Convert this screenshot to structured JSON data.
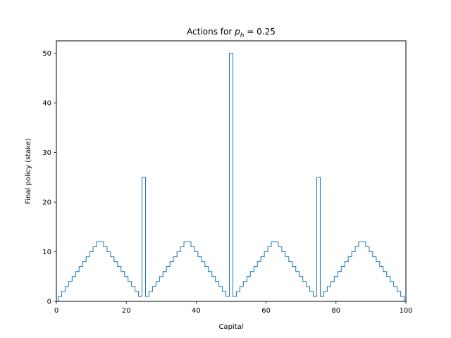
{
  "chart_data": {
    "type": "line",
    "drawstyle": "steps",
    "title_prefix": "Actions for ",
    "title_symbol": "p",
    "title_subscript": "h",
    "title_value": " =  0.25",
    "xlabel": "Capital",
    "ylabel": "Final policy (stake)",
    "xlim": [
      0,
      100
    ],
    "ylim": [
      0,
      52.5
    ],
    "xticks": [
      0,
      20,
      40,
      60,
      80,
      100
    ],
    "yticks": [
      0,
      10,
      20,
      30,
      40,
      50
    ],
    "grid": false,
    "color": "#1f77b4",
    "series": [
      {
        "x": [
          0,
          1,
          2,
          3,
          4,
          5,
          6,
          7,
          8,
          9,
          10,
          11,
          12,
          13,
          14,
          15,
          16,
          17,
          18,
          19,
          20,
          21,
          22,
          23,
          24,
          25,
          26,
          27,
          28,
          29,
          30,
          31,
          32,
          33,
          34,
          35,
          36,
          37,
          38,
          39,
          40,
          41,
          42,
          43,
          44,
          45,
          46,
          47,
          48,
          49,
          50,
          51,
          52,
          53,
          54,
          55,
          56,
          57,
          58,
          59,
          60,
          61,
          62,
          63,
          64,
          65,
          66,
          67,
          68,
          69,
          70,
          71,
          72,
          73,
          74,
          75,
          76,
          77,
          78,
          79,
          80,
          81,
          82,
          83,
          84,
          85,
          86,
          87,
          88,
          89,
          90,
          91,
          92,
          93,
          94,
          95,
          96,
          97,
          98,
          99,
          100
        ],
        "y": [
          0,
          1,
          2,
          3,
          4,
          5,
          6,
          7,
          8,
          9,
          10,
          11,
          12,
          12,
          11,
          10,
          9,
          8,
          7,
          6,
          5,
          4,
          3,
          2,
          1,
          25,
          1,
          2,
          3,
          4,
          5,
          6,
          7,
          8,
          9,
          10,
          11,
          12,
          12,
          11,
          10,
          9,
          8,
          7,
          6,
          5,
          4,
          3,
          2,
          1,
          50,
          1,
          2,
          3,
          4,
          5,
          6,
          7,
          8,
          9,
          10,
          11,
          12,
          12,
          11,
          10,
          9,
          8,
          7,
          6,
          5,
          4,
          3,
          2,
          1,
          25,
          1,
          2,
          3,
          4,
          5,
          6,
          7,
          8,
          9,
          10,
          11,
          12,
          12,
          11,
          10,
          9,
          8,
          7,
          6,
          5,
          4,
          3,
          2,
          1,
          0
        ]
      }
    ]
  }
}
